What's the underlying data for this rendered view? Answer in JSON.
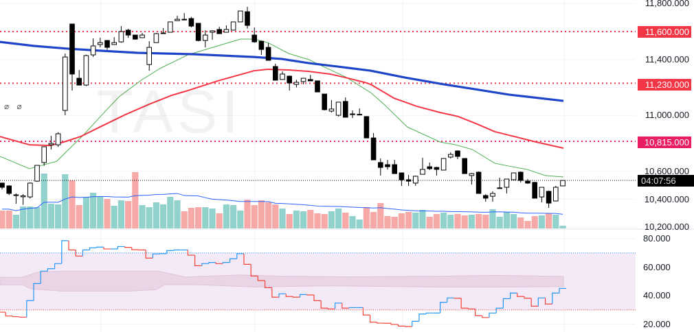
{
  "chart_data": [
    {
      "type": "candlestick",
      "watermark": "TASI",
      "ylim": [
        10200,
        11800
      ],
      "yticks": [
        "11,800.000",
        "11,400.000",
        "11,000.000",
        "10,600.000",
        "10,400.000",
        "10,200.000"
      ],
      "ytick_values": [
        11800,
        11400,
        11000,
        10600,
        10400,
        10200
      ],
      "grid": true,
      "ohlc": [
        [
          10516,
          10520,
          10470,
          10486
        ],
        [
          10496,
          10500,
          10430,
          10442
        ],
        [
          10430,
          10442,
          10368,
          10432
        ],
        [
          10418,
          10437,
          10360,
          10425
        ],
        [
          10417,
          10520,
          10405,
          10516
        ],
        [
          10530,
          10645,
          10525,
          10643
        ],
        [
          10663,
          10776,
          10640,
          10776
        ],
        [
          10790,
          10854,
          10756,
          10800
        ],
        [
          10790,
          10880,
          10775,
          10869
        ],
        [
          11036,
          11443,
          11001,
          11418
        ],
        [
          11654,
          11654,
          11178,
          11296
        ],
        [
          11266,
          11325,
          11217,
          11217
        ],
        [
          11217,
          11435,
          11210,
          11428
        ],
        [
          11433,
          11551,
          11418,
          11497
        ],
        [
          11507,
          11556,
          11487,
          11521
        ],
        [
          11536,
          11540,
          11470,
          11487
        ],
        [
          11507,
          11560,
          11505,
          11521
        ],
        [
          11526,
          11639,
          11520,
          11600
        ],
        [
          11610,
          11620,
          11555,
          11575
        ],
        [
          11575,
          11578,
          11541,
          11546
        ],
        [
          11556,
          11590,
          11556,
          11575
        ],
        [
          11364,
          11531,
          11320,
          11487
        ],
        [
          11521,
          11590,
          11521,
          11585
        ],
        [
          11588,
          11625,
          11588,
          11590
        ],
        [
          11595,
          11669,
          11595,
          11669
        ],
        [
          11678,
          11713,
          11675,
          11688
        ],
        [
          11688,
          11732,
          11680,
          11683
        ],
        [
          11693,
          11705,
          11630,
          11639
        ],
        [
          11659,
          11659,
          11530,
          11536
        ],
        [
          11536,
          11610,
          11487,
          11575
        ],
        [
          11595,
          11610,
          11541,
          11605
        ],
        [
          11615,
          11634,
          11585,
          11585
        ],
        [
          11595,
          11644,
          11595,
          11615
        ],
        [
          11610,
          11669,
          11610,
          11669
        ],
        [
          11669,
          11747,
          11669,
          11747
        ],
        [
          11742,
          11777,
          11620,
          11644
        ],
        [
          11575,
          11629,
          11520,
          11526
        ],
        [
          11531,
          11535,
          11433,
          11472
        ],
        [
          11487,
          11517,
          11394,
          11394
        ],
        [
          11350,
          11370,
          11252,
          11252
        ],
        [
          11257,
          11315,
          11257,
          11296
        ],
        [
          11281,
          11285,
          11178,
          11232
        ],
        [
          11222,
          11255,
          11200,
          11237
        ],
        [
          11242,
          11266,
          11222,
          11266
        ],
        [
          11257,
          11290,
          11247,
          11247
        ],
        [
          11247,
          11250,
          11168,
          11168
        ],
        [
          11153,
          11153,
          11036,
          11041
        ],
        [
          11031,
          11110,
          11021,
          11046
        ],
        [
          11001,
          11095,
          10992,
          11095
        ],
        [
          11100,
          11129,
          10987,
          10987
        ],
        [
          11008,
          11036,
          10982,
          11011
        ],
        [
          11006,
          11050,
          11003,
          11008
        ],
        [
          10992,
          10995,
          10839,
          10839
        ],
        [
          10839,
          10874,
          10682,
          10682
        ],
        [
          10663,
          10692,
          10570,
          10628
        ],
        [
          10648,
          10682,
          10613,
          10633
        ],
        [
          10648,
          10682,
          10584,
          10584
        ],
        [
          10589,
          10592,
          10496,
          10540
        ],
        [
          10540,
          10574,
          10496,
          10530
        ],
        [
          10516,
          10570,
          10496,
          10565
        ],
        [
          10579,
          10697,
          10579,
          10614
        ],
        [
          10633,
          10663,
          10609,
          10619
        ],
        [
          10628,
          10633,
          10570,
          10614
        ],
        [
          10609,
          10692,
          10609,
          10692
        ],
        [
          10702,
          10736,
          10692,
          10721
        ],
        [
          10746,
          10750,
          10687,
          10707
        ],
        [
          10692,
          10695,
          10584,
          10584
        ],
        [
          10570,
          10589,
          10506,
          10584
        ],
        [
          10594,
          10599,
          10442,
          10442
        ],
        [
          10427,
          10437,
          10383,
          10408
        ],
        [
          10422,
          10457,
          10383,
          10442
        ],
        [
          10480,
          10555,
          10476,
          10482
        ],
        [
          10486,
          10545,
          10442,
          10545
        ],
        [
          10540,
          10589,
          10535,
          10589
        ],
        [
          10594,
          10599,
          10520,
          10535
        ],
        [
          10530,
          10545,
          10511,
          10516
        ],
        [
          10521,
          10525,
          10408,
          10408
        ],
        [
          10417,
          10486,
          10378,
          10486
        ],
        [
          10457,
          10462,
          10339,
          10373
        ],
        [
          10388,
          10496,
          10388,
          10486
        ],
        [
          10496,
          10535,
          10496,
          10535
        ]
      ],
      "volume": [
        26,
        26,
        20,
        32,
        32,
        31,
        80,
        36,
        35,
        79,
        70,
        34,
        46,
        52,
        47,
        43,
        33,
        41,
        40,
        82,
        34,
        31,
        38,
        35,
        46,
        41,
        25,
        30,
        31,
        31,
        29,
        22,
        35,
        34,
        26,
        42,
        34,
        41,
        38,
        35,
        29,
        21,
        26,
        25,
        27,
        22,
        21,
        25,
        29,
        23,
        18,
        13,
        31,
        24,
        37,
        18,
        17,
        22,
        24,
        23,
        27,
        17,
        21,
        23,
        20,
        21,
        19,
        20,
        21,
        20,
        28,
        17,
        24,
        21,
        16,
        11,
        18,
        19,
        22,
        20,
        4
      ],
      "moving_averages": [
        {
          "color": "#4caf50",
          "points": [
            [
              -0.3,
              10707
            ],
            [
              3.9,
              10619
            ],
            [
              7.8,
              10672
            ],
            [
              9.2,
              10742
            ],
            [
              11.5,
              10854
            ],
            [
              14.1,
              10996
            ],
            [
              16.7,
              11134
            ],
            [
              20,
              11257
            ],
            [
              22.5,
              11335
            ],
            [
              26.5,
              11433
            ],
            [
              34,
              11546
            ],
            [
              36,
              11546
            ],
            [
              37.9,
              11521
            ],
            [
              40.9,
              11443
            ],
            [
              43.8,
              11399
            ],
            [
              45.8,
              11350
            ],
            [
              49,
              11276
            ],
            [
              52.6,
              11163
            ],
            [
              54.6,
              11075
            ],
            [
              57.8,
              10918
            ],
            [
              62.5,
              10810
            ],
            [
              64.7,
              10790
            ],
            [
              67.1,
              10756
            ],
            [
              70.3,
              10658
            ],
            [
              72.3,
              10638
            ],
            [
              74.9,
              10614
            ],
            [
              77.5,
              10570
            ],
            [
              80.1,
              10560
            ]
          ]
        },
        {
          "color": "#f23645",
          "points": [
            [
              -0.3,
              10849
            ],
            [
              3.9,
              10790
            ],
            [
              6.9,
              10785
            ],
            [
              8.8,
              10810
            ],
            [
              11.2,
              10849
            ],
            [
              14.4,
              10928
            ],
            [
              17.6,
              11006
            ],
            [
              21,
              11080
            ],
            [
              24.2,
              11144
            ],
            [
              26.2,
              11173
            ],
            [
              31.1,
              11252
            ],
            [
              36,
              11320
            ],
            [
              37.9,
              11330
            ],
            [
              40.9,
              11325
            ],
            [
              43.8,
              11315
            ],
            [
              46.8,
              11296
            ],
            [
              49,
              11271
            ],
            [
              51.7,
              11237
            ],
            [
              52.6,
              11222
            ],
            [
              55.9,
              11124
            ],
            [
              59.2,
              11065
            ],
            [
              62.5,
              11021
            ],
            [
              65.1,
              10992
            ],
            [
              67.6,
              10942
            ],
            [
              70.3,
              10884
            ],
            [
              73.5,
              10844
            ],
            [
              76.2,
              10810
            ],
            [
              80.1,
              10766
            ]
          ]
        },
        {
          "color": "#1e44c8",
          "points": [
            [
              -0.3,
              11526
            ],
            [
              4.6,
              11497
            ],
            [
              9.5,
              11477
            ],
            [
              14.4,
              11462
            ],
            [
              19.3,
              11448
            ],
            [
              23.2,
              11443
            ],
            [
              27.2,
              11438
            ],
            [
              36,
              11418
            ],
            [
              39.9,
              11404
            ],
            [
              43.8,
              11374
            ],
            [
              47.8,
              11350
            ],
            [
              52.6,
              11320
            ],
            [
              57.5,
              11271
            ],
            [
              62.5,
              11227
            ],
            [
              67.4,
              11188
            ],
            [
              72.3,
              11149
            ],
            [
              80.1,
              11104
            ]
          ]
        }
      ],
      "horizontal_levels": [
        {
          "value": 11600,
          "label": "11,600.000",
          "color": "#f23645"
        },
        {
          "value": 11230,
          "label": "11,230.000",
          "color": "#f23645"
        },
        {
          "value": 10815,
          "label": "10,815.000",
          "color": "#e91e63"
        }
      ],
      "current_price": 10535,
      "countdown": "04:07:56",
      "colors": {
        "up_volume": "#92d2cc",
        "down_volume": "#f7a9a7",
        "volume_ma": "#2962ff",
        "candle_up": "#ffffff",
        "candle_down": "#000000"
      }
    },
    {
      "type": "line",
      "ylim": [
        15,
        85
      ],
      "yticks": [
        "80.000",
        "60.000",
        "40.000",
        "20.000"
      ],
      "ytick_values": [
        80,
        60,
        40,
        20
      ],
      "overbought": 70,
      "oversold": 30,
      "values": [
        28.4,
        25.7,
        25.2,
        24.9,
        36.5,
        48.5,
        57.2,
        58.9,
        62.5,
        78.6,
        72.1,
        67.8,
        72.1,
        73.6,
        74.1,
        72.8,
        72.8,
        74.5,
        73.9,
        72.3,
        72.1,
        66.4,
        69.3,
        69.5,
        71.7,
        72.1,
        72.1,
        68.4,
        61.0,
        62.5,
        63.3,
        62.5,
        63.3,
        65.9,
        69.5,
        62.0,
        53.8,
        50.6,
        45.6,
        38.9,
        41.3,
        39.4,
        38.9,
        40.8,
        40.5,
        36.5,
        31.2,
        30.7,
        34.8,
        31.2,
        31.6,
        31.6,
        26.4,
        21.4,
        20.7,
        20.6,
        19.8,
        18.6,
        18.3,
        22.0,
        27.1,
        27.8,
        27.8,
        35.3,
        38.4,
        38.2,
        31.2,
        30.7,
        25.9,
        24.6,
        27.8,
        31.2,
        37.9,
        41.8,
        39.4,
        38.2,
        32.6,
        38.4,
        34.1,
        41.8,
        45.1
      ],
      "band_upper": [
        [
          -0.3,
          52.9
        ],
        [
          2.9,
          52.9
        ],
        [
          5.1,
          56.5
        ],
        [
          9,
          57.2
        ],
        [
          22.3,
          57.2
        ],
        [
          26.2,
          53.0
        ],
        [
          28.1,
          53.5
        ],
        [
          34,
          54.5
        ],
        [
          39.9,
          53.7
        ],
        [
          49.7,
          53.2
        ],
        [
          62.5,
          53.7
        ],
        [
          70.3,
          54.3
        ],
        [
          80.1,
          53.5
        ]
      ],
      "band_lower": [
        [
          -0.3,
          47.6
        ],
        [
          2.9,
          47.6
        ],
        [
          4.1,
          44.8
        ],
        [
          8.5,
          43.2
        ],
        [
          18.3,
          43.2
        ],
        [
          22,
          44.2
        ],
        [
          23.2,
          47.7
        ],
        [
          27.6,
          47.7
        ],
        [
          36,
          46.1
        ],
        [
          39.9,
          46.4
        ],
        [
          46.8,
          46.9
        ],
        [
          62.5,
          46.0
        ],
        [
          70.3,
          46.0
        ],
        [
          80.1,
          46.4
        ]
      ],
      "colors": {
        "up": "#2196f3",
        "down": "#f44336",
        "overbought": "#2196f3",
        "oversold": "#f44336",
        "fill": "#f4eaf7",
        "band": "#e9d5e6"
      }
    }
  ],
  "legend": {
    "hidden_icons": "⌀ ⌀"
  }
}
